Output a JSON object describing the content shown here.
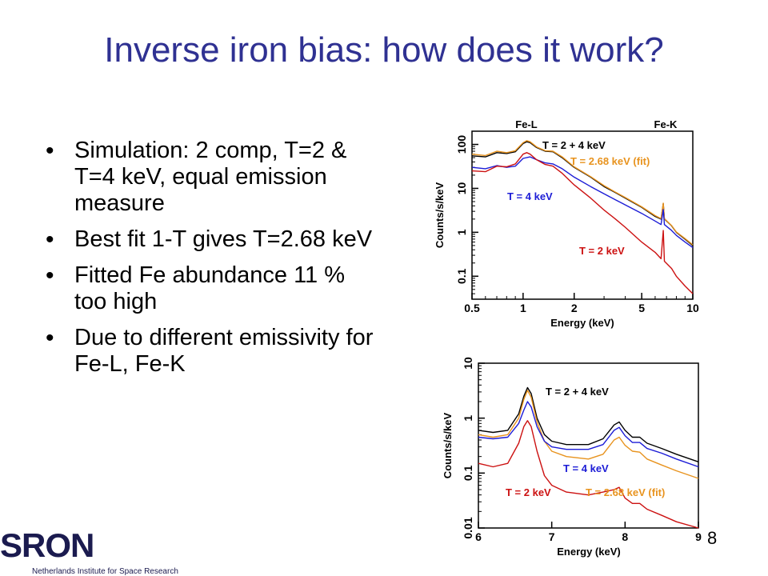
{
  "title": "Inverse iron bias: how does it work?",
  "bullets": [
    "Simulation: 2 comp, T=2 & T=4 keV, equal emission measure",
    "Best fit 1-T gives T=2.68 keV",
    "Fitted Fe abundance 11 % too high",
    "Due to different emissivity for Fe-L, Fe-K"
  ],
  "page_number": "8",
  "logo": {
    "text": "SRON",
    "subtitle": "Netherlands Institute for Space Research"
  },
  "colors": {
    "title": "#2f3192",
    "sum": "#000000",
    "fit": "#e8931e",
    "t4": "#1c1cd6",
    "t2": "#cc1111"
  },
  "chart_data": [
    {
      "type": "line",
      "xlabel": "Energy (keV)",
      "ylabel": "Counts/s/keV",
      "xscale": "log",
      "yscale": "log",
      "xlim": [
        0.5,
        10
      ],
      "ylim": [
        0.03,
        200
      ],
      "x_ticks": [
        0.5,
        1,
        2,
        5,
        10
      ],
      "x_tick_labels": [
        "0.5",
        "1",
        "2",
        "5",
        "10"
      ],
      "y_ticks": [
        0.1,
        1,
        10,
        100
      ],
      "y_tick_labels": [
        "0.1",
        "1",
        "10",
        "100"
      ],
      "top_labels": [
        {
          "text": "Fe-L",
          "x": 1.0
        },
        {
          "text": "Fe-K",
          "x": 6.7
        }
      ],
      "series": [
        {
          "name": "T = 2 + 4 keV",
          "color": "#000000",
          "x": [
            0.5,
            0.6,
            0.7,
            0.8,
            0.9,
            1.0,
            1.05,
            1.1,
            1.2,
            1.35,
            1.5,
            1.7,
            2.0,
            2.5,
            3.0,
            3.5,
            4.0,
            5.0,
            6.0,
            6.5,
            6.7,
            6.8,
            7.5,
            8.0,
            9.0,
            10.0
          ],
          "y": [
            55,
            52,
            65,
            62,
            68,
            105,
            115,
            110,
            85,
            70,
            68,
            50,
            30,
            18,
            11,
            8,
            6,
            3.7,
            2.3,
            2.0,
            4.5,
            2.0,
            1.4,
            1.0,
            0.7,
            0.5
          ]
        },
        {
          "name": "T = 2.68 keV (fit)",
          "color": "#e8931e",
          "x": [
            0.5,
            0.6,
            0.7,
            0.8,
            0.9,
            1.0,
            1.05,
            1.1,
            1.2,
            1.35,
            1.5,
            1.7,
            2.0,
            2.5,
            3.0,
            3.5,
            4.0,
            5.0,
            6.0,
            6.5,
            6.7,
            6.8,
            7.5,
            8.0,
            9.0,
            10.0
          ],
          "y": [
            60,
            56,
            70,
            65,
            72,
            110,
            122,
            115,
            88,
            72,
            70,
            52,
            31,
            18.5,
            11.5,
            8.2,
            6.2,
            3.8,
            2.4,
            2.05,
            4.6,
            2.05,
            1.42,
            1.02,
            0.72,
            0.52
          ]
        },
        {
          "name": "T = 4 keV",
          "color": "#1c1cd6",
          "x": [
            0.5,
            0.6,
            0.7,
            0.8,
            0.9,
            1.0,
            1.1,
            1.2,
            1.35,
            1.5,
            1.7,
            2.0,
            2.5,
            3.0,
            3.5,
            4.0,
            5.0,
            6.0,
            6.5,
            6.7,
            6.8,
            7.5,
            8.0,
            9.0,
            10.0
          ],
          "y": [
            30,
            28,
            33,
            30,
            32,
            48,
            52,
            45,
            38,
            36,
            28,
            18,
            11,
            7.5,
            5.5,
            4.2,
            2.7,
            1.8,
            1.5,
            3.3,
            1.5,
            1.1,
            0.85,
            0.6,
            0.45
          ]
        },
        {
          "name": "T = 2 keV",
          "color": "#cc1111",
          "x": [
            0.5,
            0.6,
            0.7,
            0.8,
            0.9,
            1.0,
            1.05,
            1.1,
            1.2,
            1.35,
            1.5,
            1.7,
            2.0,
            2.5,
            3.0,
            3.5,
            4.0,
            5.0,
            6.0,
            6.5,
            6.7,
            6.8,
            7.5,
            8.0,
            9.0,
            10.0
          ],
          "y": [
            25,
            24,
            32,
            31,
            36,
            60,
            65,
            60,
            45,
            35,
            32,
            22,
            12,
            6,
            3.2,
            2.0,
            1.3,
            0.6,
            0.35,
            0.25,
            1.1,
            0.22,
            0.15,
            0.1,
            0.06,
            0.04
          ]
        }
      ],
      "annotations": [
        {
          "text": "T = 2 + 4 keV",
          "color": "#000000"
        },
        {
          "text": "T = 2.68 keV (fit)",
          "color": "#e8931e"
        },
        {
          "text": "T = 4 keV",
          "color": "#1c1cd6"
        },
        {
          "text": "T = 2 keV",
          "color": "#cc1111"
        }
      ]
    },
    {
      "type": "line",
      "xlabel": "Energy (keV)",
      "ylabel": "Counts/s/keV",
      "xscale": "linear",
      "yscale": "log",
      "xlim": [
        6,
        9
      ],
      "ylim": [
        0.01,
        10
      ],
      "x_ticks": [
        6,
        7,
        8,
        9
      ],
      "x_tick_labels": [
        "6",
        "7",
        "8",
        "9"
      ],
      "y_ticks": [
        0.01,
        0.1,
        1,
        10
      ],
      "y_tick_labels": [
        "0.01",
        "0.1",
        "1",
        "10"
      ],
      "series": [
        {
          "name": "T = 2 + 4 keV",
          "color": "#000000",
          "x": [
            6.0,
            6.2,
            6.4,
            6.55,
            6.62,
            6.67,
            6.72,
            6.8,
            6.9,
            7.0,
            7.2,
            7.5,
            7.7,
            7.85,
            7.92,
            8.0,
            8.1,
            8.2,
            8.3,
            8.5,
            8.7,
            9.0
          ],
          "y": [
            0.6,
            0.55,
            0.6,
            1.2,
            2.5,
            3.6,
            2.8,
            1.0,
            0.5,
            0.38,
            0.33,
            0.33,
            0.42,
            0.75,
            0.85,
            0.6,
            0.45,
            0.45,
            0.35,
            0.28,
            0.22,
            0.16
          ]
        },
        {
          "name": "T = 2.68 keV (fit)",
          "color": "#e8931e",
          "x": [
            6.0,
            6.2,
            6.4,
            6.55,
            6.62,
            6.67,
            6.72,
            6.8,
            6.9,
            7.0,
            7.2,
            7.5,
            7.7,
            7.85,
            7.92,
            8.0,
            8.1,
            8.2,
            8.3,
            8.5,
            8.7,
            9.0
          ],
          "y": [
            0.5,
            0.45,
            0.5,
            1.0,
            2.2,
            3.2,
            2.4,
            0.85,
            0.38,
            0.25,
            0.2,
            0.18,
            0.22,
            0.4,
            0.45,
            0.32,
            0.25,
            0.24,
            0.18,
            0.14,
            0.11,
            0.08
          ]
        },
        {
          "name": "T = 4 keV",
          "color": "#1c1cd6",
          "x": [
            6.0,
            6.2,
            6.4,
            6.55,
            6.62,
            6.67,
            6.72,
            6.8,
            6.9,
            7.0,
            7.2,
            7.5,
            7.7,
            7.85,
            7.92,
            8.0,
            8.1,
            8.2,
            8.3,
            8.5,
            8.7,
            9.0
          ],
          "y": [
            0.45,
            0.42,
            0.45,
            0.8,
            1.4,
            2.0,
            1.6,
            0.7,
            0.38,
            0.3,
            0.27,
            0.27,
            0.33,
            0.6,
            0.68,
            0.48,
            0.36,
            0.36,
            0.28,
            0.23,
            0.18,
            0.13
          ]
        },
        {
          "name": "T = 2 keV",
          "color": "#cc1111",
          "x": [
            6.0,
            6.2,
            6.4,
            6.55,
            6.62,
            6.67,
            6.72,
            6.8,
            6.9,
            7.0,
            7.2,
            7.5,
            7.7,
            7.85,
            7.92,
            8.0,
            8.1,
            8.2,
            8.3,
            8.5,
            8.7,
            9.0
          ],
          "y": [
            0.15,
            0.13,
            0.15,
            0.35,
            0.7,
            0.9,
            0.7,
            0.25,
            0.09,
            0.06,
            0.045,
            0.04,
            0.045,
            0.05,
            0.055,
            0.035,
            0.028,
            0.028,
            0.022,
            0.017,
            0.013,
            0.01
          ]
        }
      ],
      "annotations": [
        {
          "text": "T = 2 + 4 keV",
          "color": "#000000"
        },
        {
          "text": "T = 4 keV",
          "color": "#1c1cd6"
        },
        {
          "text": "T = 2.68 keV (fit)",
          "color": "#e8931e"
        },
        {
          "text": "T = 2 keV",
          "color": "#cc1111"
        }
      ]
    }
  ]
}
